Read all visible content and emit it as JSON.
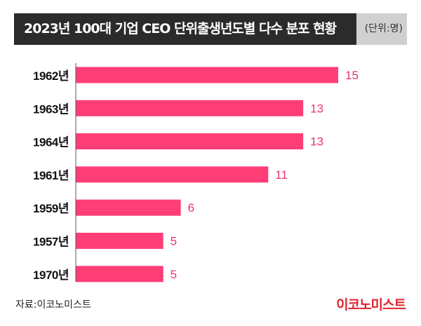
{
  "header": {
    "title": "2023년 100대 기업 CEO 단위출생년도별 다수 분포 현황",
    "unit": "(단위:명)"
  },
  "footer": {
    "source": "자료:이코노미스트",
    "logo": "이코노미스트"
  },
  "colors": {
    "bar": "#ff3d77",
    "value_label": "#e8356d",
    "header_bg": "#2b2b2b",
    "header_accent": "#d0d0d0",
    "axis": "#555555"
  },
  "chart_data": {
    "type": "bar",
    "orientation": "horizontal",
    "categories": [
      "1962년",
      "1963년",
      "1964년",
      "1961년",
      "1959년",
      "1957년",
      "1970년"
    ],
    "values": [
      15,
      13,
      13,
      11,
      6,
      5,
      5
    ],
    "title": "2023년 100대 기업 CEO 단위출생년도별 다수 분포 현황",
    "xlabel": "",
    "ylabel": "",
    "xlim": [
      0,
      15
    ],
    "grid": false,
    "legend": "none",
    "data_labels": true
  }
}
